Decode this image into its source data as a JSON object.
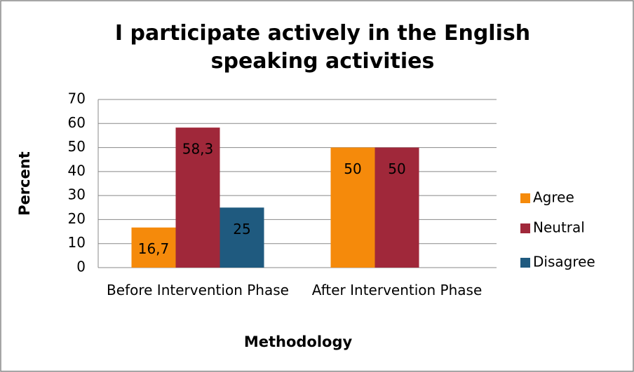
{
  "chart_data": {
    "type": "bar",
    "title": "I participate actively in the English speaking activities",
    "x_label": "Methodology",
    "y_label": "Percent",
    "categories": [
      "Before Intervention Phase",
      "After Intervention Phase"
    ],
    "series": [
      {
        "name": "Agree",
        "color": "#f58a0b",
        "values": [
          16.7,
          50
        ],
        "value_labels": [
          "16,7",
          "50"
        ]
      },
      {
        "name": "Neutral",
        "color": "#a0283a",
        "values": [
          58.3,
          50
        ],
        "value_labels": [
          "58,3",
          "50"
        ]
      },
      {
        "name": "Disagree",
        "color": "#1f5a7f",
        "values": [
          25,
          null
        ],
        "value_labels": [
          "25",
          null
        ]
      }
    ],
    "ylim": [
      0,
      70
    ],
    "yticks": [
      0,
      10,
      20,
      30,
      40,
      50,
      60,
      70
    ],
    "grid": true,
    "legend": "right"
  }
}
